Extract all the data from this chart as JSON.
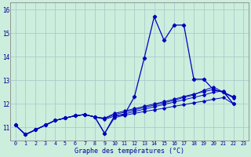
{
  "xlabel": "Graphe des températures (°C)",
  "background_color": "#cceedd",
  "grid_color": "#aacccc",
  "line_color": "#0000bb",
  "xlim": [
    -0.5,
    23.5
  ],
  "ylim": [
    10.45,
    16.3
  ],
  "xticks": [
    0,
    1,
    2,
    3,
    4,
    5,
    6,
    7,
    8,
    9,
    10,
    11,
    12,
    13,
    14,
    15,
    16,
    17,
    18,
    19,
    20,
    21,
    22,
    23
  ],
  "yticks": [
    11,
    12,
    13,
    14,
    15,
    16
  ],
  "main_x": [
    0,
    1,
    2,
    3,
    4,
    5,
    6,
    7,
    8,
    9,
    10,
    11,
    12,
    13,
    14,
    15,
    16,
    17,
    18,
    19,
    20,
    21,
    22
  ],
  "main_y": [
    11.1,
    10.7,
    10.9,
    11.1,
    11.3,
    11.4,
    11.5,
    11.55,
    11.45,
    10.75,
    11.5,
    11.55,
    12.3,
    13.95,
    15.7,
    14.7,
    15.35,
    15.35,
    13.05,
    13.05,
    12.6,
    12.5,
    12.3
  ],
  "flat_series": [
    [
      11.1,
      10.7,
      10.9,
      11.1,
      11.3,
      11.4,
      11.5,
      11.55,
      11.45,
      10.75,
      11.42,
      11.52,
      11.6,
      11.68,
      11.75,
      11.82,
      11.9,
      11.97,
      12.05,
      12.12,
      12.2,
      12.27,
      12.0
    ],
    [
      11.1,
      10.7,
      10.9,
      11.1,
      11.3,
      11.4,
      11.5,
      11.55,
      11.45,
      11.35,
      11.48,
      11.58,
      11.68,
      11.78,
      11.88,
      11.98,
      12.08,
      12.18,
      12.28,
      12.38,
      12.5,
      12.55,
      12.0
    ],
    [
      11.1,
      10.7,
      10.9,
      11.1,
      11.3,
      11.4,
      11.5,
      11.55,
      11.45,
      11.38,
      11.55,
      11.65,
      11.75,
      11.85,
      11.95,
      12.05,
      12.15,
      12.28,
      12.38,
      12.58,
      12.72,
      12.5,
      12.25
    ],
    [
      11.1,
      10.7,
      10.9,
      11.1,
      11.3,
      11.4,
      11.5,
      11.55,
      11.45,
      11.4,
      11.6,
      11.7,
      11.8,
      11.9,
      12.0,
      12.1,
      12.2,
      12.32,
      12.42,
      12.52,
      12.62,
      12.5,
      12.0
    ]
  ]
}
